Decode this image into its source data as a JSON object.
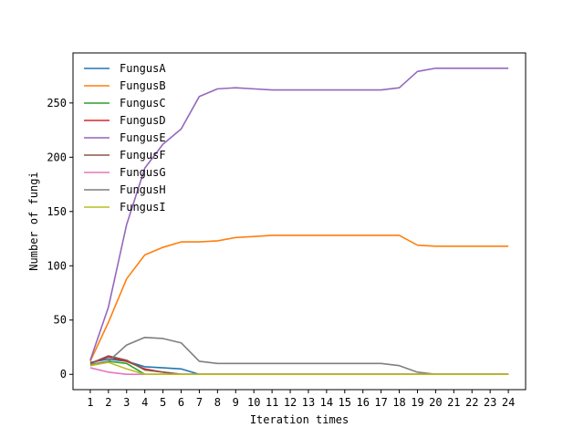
{
  "chart_data": {
    "type": "line",
    "title": "",
    "xlabel": "Iteration times",
    "ylabel": "Number of fungi",
    "xlim": [
      0.05,
      24.95
    ],
    "ylim": [
      -14.1,
      296.1
    ],
    "x": [
      1,
      2,
      3,
      4,
      5,
      6,
      7,
      8,
      9,
      10,
      11,
      12,
      13,
      14,
      15,
      16,
      17,
      18,
      19,
      20,
      21,
      22,
      23,
      24
    ],
    "x_ticks": [
      "1",
      "2",
      "3",
      "4",
      "5",
      "6",
      "7",
      "8",
      "9",
      "10",
      "11",
      "12",
      "13",
      "14",
      "15",
      "16",
      "17",
      "18",
      "19",
      "20",
      "21",
      "22",
      "23",
      "24"
    ],
    "y_ticks": [
      0,
      50,
      100,
      150,
      200,
      250
    ],
    "legend_position": "upper-left",
    "grid": false,
    "series": [
      {
        "name": "FungusA",
        "color": "#1f77b4",
        "values": [
          11,
          14,
          12,
          7,
          6,
          5,
          0,
          0,
          0,
          0,
          0,
          0,
          0,
          0,
          0,
          0,
          0,
          0,
          0,
          0,
          0,
          0,
          0,
          0
        ]
      },
      {
        "name": "FungusB",
        "color": "#ff7f0e",
        "values": [
          12,
          48,
          88,
          110,
          117,
          122,
          122,
          123,
          126,
          127,
          128,
          128,
          128,
          128,
          128,
          128,
          128,
          128,
          119,
          118,
          118,
          118,
          118,
          118
        ]
      },
      {
        "name": "FungusC",
        "color": "#2ca02c",
        "values": [
          8,
          12,
          10,
          0,
          0,
          0,
          0,
          0,
          0,
          0,
          0,
          0,
          0,
          0,
          0,
          0,
          0,
          0,
          0,
          0,
          0,
          0,
          0,
          0
        ]
      },
      {
        "name": "FungusD",
        "color": "#d62728",
        "values": [
          10,
          16,
          12,
          5,
          2,
          0,
          0,
          0,
          0,
          0,
          0,
          0,
          0,
          0,
          0,
          0,
          0,
          0,
          0,
          0,
          0,
          0,
          0,
          0
        ]
      },
      {
        "name": "FungusE",
        "color": "#9467bd",
        "values": [
          13,
          62,
          138,
          190,
          212,
          226,
          256,
          263,
          264,
          263,
          262,
          262,
          262,
          262,
          262,
          262,
          262,
          264,
          279,
          282,
          282,
          282,
          282,
          282
        ]
      },
      {
        "name": "FungusF",
        "color": "#8c564b",
        "values": [
          10,
          17,
          13,
          4,
          2,
          0,
          0,
          0,
          0,
          0,
          0,
          0,
          0,
          0,
          0,
          0,
          0,
          0,
          0,
          0,
          0,
          0,
          0,
          0
        ]
      },
      {
        "name": "FungusG",
        "color": "#e377c2",
        "values": [
          6,
          2,
          0,
          0,
          0,
          0,
          0,
          0,
          0,
          0,
          0,
          0,
          0,
          0,
          0,
          0,
          0,
          0,
          0,
          0,
          0,
          0,
          0,
          0
        ]
      },
      {
        "name": "FungusH",
        "color": "#7f7f7f",
        "values": [
          9,
          12,
          27,
          34,
          33,
          29,
          12,
          10,
          10,
          10,
          10,
          10,
          10,
          10,
          10,
          10,
          10,
          8,
          2,
          0,
          0,
          0,
          0,
          0
        ]
      },
      {
        "name": "FungusI",
        "color": "#bcbd22",
        "values": [
          8,
          11,
          5,
          0,
          0,
          0,
          0,
          0,
          0,
          0,
          0,
          0,
          0,
          0,
          0,
          0,
          0,
          0,
          0,
          0,
          0,
          0,
          0,
          0
        ]
      }
    ]
  }
}
